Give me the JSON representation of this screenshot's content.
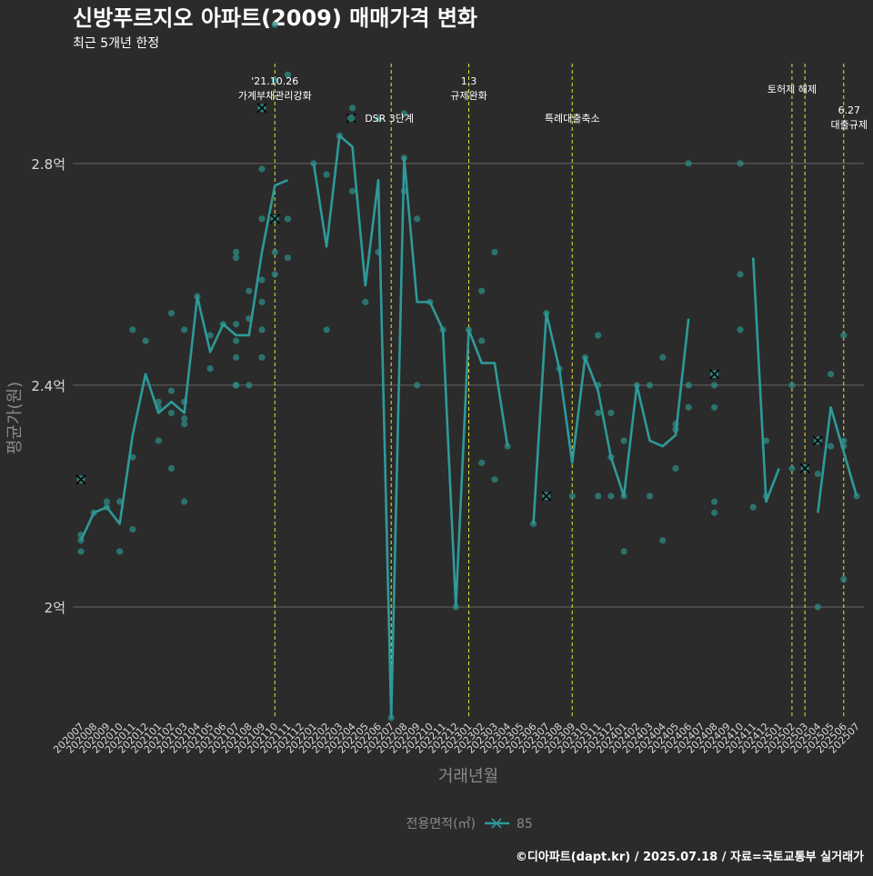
{
  "colors": {
    "background": "#2b2b2b",
    "gridline": "#666666",
    "series": "#2e9a9a",
    "points": "#2e8b86",
    "event_line": "#e6e62e",
    "title": "#ffffff",
    "axis_title": "#8a8a8a",
    "tick": "#d8d8d8",
    "annotation": "#ffffff"
  },
  "chart_data": {
    "type": "line",
    "title": "신방푸르지오 아파트(2009) 매매가격 변화",
    "subtitle": "최근 5개년 한정",
    "xlabel": "거래년월",
    "ylabel": "평균가(원)",
    "caption": "©디아파트(dapt.kr) / 2025.07.18 / 자료=국토교통부 실거래가",
    "legend": {
      "title": "전용면적(㎡)",
      "entries": [
        "85"
      ],
      "position": "bottom"
    },
    "grid": true,
    "ylim": [
      1.8,
      2.98
    ],
    "y_ticks": [
      {
        "value": 2.0,
        "label": "2억"
      },
      {
        "value": 2.4,
        "label": "2.4억"
      },
      {
        "value": 2.8,
        "label": "2.8억"
      }
    ],
    "x_categories": [
      "202007",
      "202008",
      "202009",
      "202010",
      "202011",
      "202012",
      "202101",
      "202102",
      "202103",
      "202104",
      "202105",
      "202106",
      "202107",
      "202108",
      "202109",
      "202110",
      "202111",
      "202112",
      "202201",
      "202202",
      "202203",
      "202204",
      "202205",
      "202206",
      "202207",
      "202208",
      "202209",
      "202210",
      "202211",
      "202212",
      "202301",
      "202302",
      "202303",
      "202304",
      "202305",
      "202306",
      "202307",
      "202308",
      "202309",
      "202310",
      "202311",
      "202312",
      "202401",
      "202402",
      "202403",
      "202404",
      "202405",
      "202406",
      "202407",
      "202408",
      "202409",
      "202410",
      "202411",
      "202412",
      "202501",
      "202502",
      "202503",
      "202504",
      "202505",
      "202506",
      "202507"
    ],
    "series": [
      {
        "name": "85",
        "unit": "억",
        "line": [
          [
            "202007",
            2.12
          ],
          [
            "202008",
            2.17
          ],
          [
            "202009",
            2.18
          ],
          [
            "202010",
            2.15
          ],
          [
            "202011",
            2.31
          ],
          [
            "202012",
            2.42
          ],
          [
            "202101",
            2.35
          ],
          [
            "202102",
            2.37
          ],
          [
            "202103",
            2.35
          ],
          [
            "202104",
            2.56
          ],
          [
            "202105",
            2.46
          ],
          [
            "202106",
            2.51
          ],
          [
            "202107",
            2.49
          ],
          [
            "202108",
            2.49
          ],
          [
            "202109",
            2.64
          ],
          [
            "202110",
            2.76
          ],
          [
            "202111",
            2.77
          ],
          null,
          [
            "202201",
            2.8
          ],
          [
            "202202",
            2.65
          ],
          [
            "202203",
            2.85
          ],
          [
            "202204",
            2.83
          ],
          [
            "202205",
            2.58
          ],
          [
            "202206",
            2.77
          ],
          [
            "202207",
            1.8
          ],
          [
            "202208",
            2.81
          ],
          [
            "202209",
            2.55
          ],
          [
            "202210",
            2.55
          ],
          [
            "202211",
            2.5
          ],
          [
            "202212",
            2.0
          ],
          [
            "202301",
            2.5
          ],
          [
            "202302",
            2.44
          ],
          [
            "202303",
            2.44
          ],
          [
            "202304",
            2.29
          ],
          null,
          [
            "202306",
            2.15
          ],
          [
            "202307",
            2.53
          ],
          [
            "202308",
            2.43
          ],
          [
            "202309",
            2.26
          ],
          [
            "202310",
            2.45
          ],
          [
            "202311",
            2.39
          ],
          [
            "202312",
            2.27
          ],
          [
            "202401",
            2.2
          ],
          [
            "202402",
            2.4
          ],
          [
            "202403",
            2.3
          ],
          [
            "202404",
            2.29
          ],
          [
            "202405",
            2.31
          ],
          [
            "202406",
            2.52
          ],
          null,
          [
            "202409",
            2.42
          ],
          null,
          [
            "202411",
            2.63
          ],
          [
            "202412",
            2.19
          ],
          [
            "202501",
            2.25
          ],
          null,
          [
            "202504",
            2.17
          ],
          [
            "202505",
            2.36
          ],
          [
            "202506",
            2.28
          ],
          [
            "202507",
            2.2
          ]
        ],
        "points": [
          [
            "202007",
            2.13
          ],
          [
            "202007",
            2.12
          ],
          [
            "202007",
            2.1
          ],
          [
            "202008",
            2.17
          ],
          [
            "202009",
            2.19
          ],
          [
            "202009",
            2.18
          ],
          [
            "202010",
            2.19
          ],
          [
            "202010",
            2.1
          ],
          [
            "202011",
            2.5
          ],
          [
            "202011",
            2.27
          ],
          [
            "202011",
            2.14
          ],
          [
            "202012",
            2.48
          ],
          [
            "202101",
            2.37
          ],
          [
            "202101",
            2.36
          ],
          [
            "202101",
            2.3
          ],
          [
            "202102",
            2.53
          ],
          [
            "202102",
            2.39
          ],
          [
            "202102",
            2.35
          ],
          [
            "202102",
            2.25
          ],
          [
            "202103",
            2.5
          ],
          [
            "202103",
            2.37
          ],
          [
            "202103",
            2.34
          ],
          [
            "202103",
            2.33
          ],
          [
            "202103",
            2.19
          ],
          [
            "202104",
            2.56
          ],
          [
            "202105",
            2.49
          ],
          [
            "202105",
            2.43
          ],
          [
            "202106",
            2.51
          ],
          [
            "202107",
            2.64
          ],
          [
            "202107",
            2.63
          ],
          [
            "202107",
            2.51
          ],
          [
            "202107",
            2.48
          ],
          [
            "202107",
            2.45
          ],
          [
            "202107",
            2.4
          ],
          [
            "202107",
            2.4
          ],
          [
            "202108",
            2.57
          ],
          [
            "202108",
            2.52
          ],
          [
            "202108",
            2.4
          ],
          [
            "202109",
            2.79
          ],
          [
            "202109",
            2.7
          ],
          [
            "202109",
            2.59
          ],
          [
            "202109",
            2.55
          ],
          [
            "202109",
            2.5
          ],
          [
            "202109",
            2.45
          ],
          [
            "202110",
            3.05
          ],
          [
            "202110",
            2.95
          ],
          [
            "202110",
            2.7
          ],
          [
            "202110",
            2.64
          ],
          [
            "202110",
            2.6
          ],
          [
            "202111",
            2.96
          ],
          [
            "202111",
            2.7
          ],
          [
            "202111",
            2.63
          ],
          [
            "202201",
            2.8
          ],
          [
            "202202",
            2.78
          ],
          [
            "202202",
            2.5
          ],
          [
            "202203",
            2.85
          ],
          [
            "202204",
            2.9
          ],
          [
            "202204",
            2.75
          ],
          [
            "202205",
            2.55
          ],
          [
            "202206",
            2.88
          ],
          [
            "202206",
            2.64
          ],
          [
            "202207",
            1.8
          ],
          [
            "202208",
            2.89
          ],
          [
            "202208",
            2.81
          ],
          [
            "202208",
            2.75
          ],
          [
            "202209",
            2.7
          ],
          [
            "202209",
            2.4
          ],
          [
            "202210",
            2.55
          ],
          [
            "202211",
            2.5
          ],
          [
            "202212",
            2.0
          ],
          [
            "202301",
            2.5
          ],
          [
            "202302",
            2.57
          ],
          [
            "202302",
            2.48
          ],
          [
            "202302",
            2.26
          ],
          [
            "202303",
            2.64
          ],
          [
            "202303",
            2.23
          ],
          [
            "202304",
            2.29
          ],
          [
            "202306",
            2.15
          ],
          [
            "202307",
            2.53
          ],
          [
            "202308",
            2.43
          ],
          [
            "202309",
            2.2
          ],
          [
            "202310",
            2.45
          ],
          [
            "202311",
            2.49
          ],
          [
            "202311",
            2.4
          ],
          [
            "202311",
            2.35
          ],
          [
            "202311",
            2.2
          ],
          [
            "202312",
            2.35
          ],
          [
            "202312",
            2.27
          ],
          [
            "202312",
            2.2
          ],
          [
            "202401",
            2.3
          ],
          [
            "202401",
            2.2
          ],
          [
            "202401",
            2.1
          ],
          [
            "202402",
            2.4
          ],
          [
            "202403",
            2.4
          ],
          [
            "202403",
            2.2
          ],
          [
            "202404",
            2.45
          ],
          [
            "202404",
            2.12
          ],
          [
            "202405",
            2.33
          ],
          [
            "202405",
            2.32
          ],
          [
            "202405",
            2.25
          ],
          [
            "202406",
            2.8
          ],
          [
            "202406",
            2.4
          ],
          [
            "202406",
            2.36
          ],
          [
            "202408",
            2.42
          ],
          [
            "202408",
            2.4
          ],
          [
            "202408",
            2.36
          ],
          [
            "202408",
            2.19
          ],
          [
            "202408",
            2.17
          ],
          [
            "202410",
            2.8
          ],
          [
            "202410",
            2.6
          ],
          [
            "202410",
            2.5
          ],
          [
            "202411",
            2.18
          ],
          [
            "202412",
            2.3
          ],
          [
            "202412",
            2.2
          ],
          [
            "202502",
            2.4
          ],
          [
            "202502",
            2.25
          ],
          [
            "202504",
            2.24
          ],
          [
            "202504",
            2.0
          ],
          [
            "202505",
            2.42
          ],
          [
            "202505",
            2.29
          ],
          [
            "202506",
            2.49
          ],
          [
            "202506",
            2.3
          ],
          [
            "202506",
            2.29
          ],
          [
            "202506",
            2.05
          ],
          [
            "202507",
            2.2
          ]
        ],
        "crossed_points": [
          [
            "202007",
            2.23
          ],
          [
            "202109",
            2.9
          ],
          [
            "202110",
            2.7
          ],
          [
            "202307",
            2.2
          ],
          [
            "202408",
            2.42
          ],
          [
            "202503",
            2.25
          ],
          [
            "202504",
            2.3
          ]
        ]
      }
    ],
    "events": [
      {
        "x": "202110",
        "labels": [
          "'21.10.26",
          "가계부채관리강화"
        ]
      },
      {
        "x": "202207",
        "labels": [
          "DSR 3단계"
        ],
        "marker": true
      },
      {
        "x": "202301",
        "labels": [
          "1.3",
          "규제완화"
        ]
      },
      {
        "x": "202309",
        "labels": [
          "특례대출축소"
        ]
      },
      {
        "x": "202502",
        "labels": [
          "토허제 해제"
        ]
      },
      {
        "x": "202503",
        "labels": []
      },
      {
        "x": "202506",
        "labels": [
          "6.27",
          "대출규제"
        ]
      }
    ]
  }
}
